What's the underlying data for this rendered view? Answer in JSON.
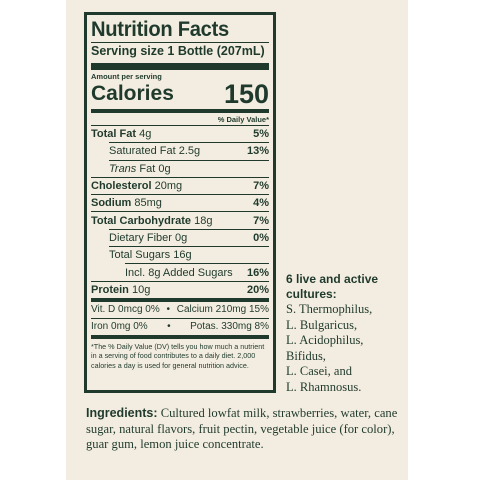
{
  "panel": {
    "title": "Nutrition Facts",
    "serving_size": "Serving size 1 Bottle (207mL)",
    "amount_per_serving": "Amount per serving",
    "calories_label": "Calories",
    "calories_value": "150",
    "dv_header": "% Daily Value*",
    "nutrients": [
      {
        "label": "Total Fat",
        "amount": "4g",
        "pct": "5%"
      },
      {
        "label": "Saturated Fat",
        "amount": "2.5g",
        "pct": "13%"
      },
      {
        "label": "Trans",
        "amount": "Fat 0g",
        "pct": ""
      },
      {
        "label": "Cholesterol",
        "amount": "20mg",
        "pct": "7%"
      },
      {
        "label": "Sodium",
        "amount": "85mg",
        "pct": "4%"
      },
      {
        "label": "Total Carbohydrate",
        "amount": "18g",
        "pct": "7%"
      },
      {
        "label": "Dietary Fiber",
        "amount": "0g",
        "pct": "0%"
      },
      {
        "label": "Total Sugars",
        "amount": "16g",
        "pct": ""
      },
      {
        "label": "Incl. 8g Added Sugars",
        "amount": "",
        "pct": "16%"
      },
      {
        "label": "Protein",
        "amount": "10g",
        "pct": "20%"
      }
    ],
    "vitamins": [
      {
        "left": "Vit. D 0mcg 0%",
        "right": "Calcium 210mg 15%"
      },
      {
        "left": "Iron 0mg 0%",
        "right": "Potas. 330mg 8%"
      }
    ],
    "footnote": "*The % Daily Value (DV) tells you how much a nutrient in a serving of food contributes to a daily diet. 2,000 calories a day is used for general nutrition advice."
  },
  "cultures": {
    "heading": "6 live and active cultures:",
    "items": [
      "S. Thermophilus,",
      "L. Bulgaricus,",
      "L. Acidophilus,",
      "Bifidus,",
      "L. Casei, and",
      "L. Rhamnosus."
    ]
  },
  "ingredients": {
    "label": "Ingredients:",
    "text": "Cultured lowfat milk, strawberries, water, cane sugar, natural flavors, fruit pectin, vegetable juice (for color), guar gum, lemon juice concentrate."
  }
}
